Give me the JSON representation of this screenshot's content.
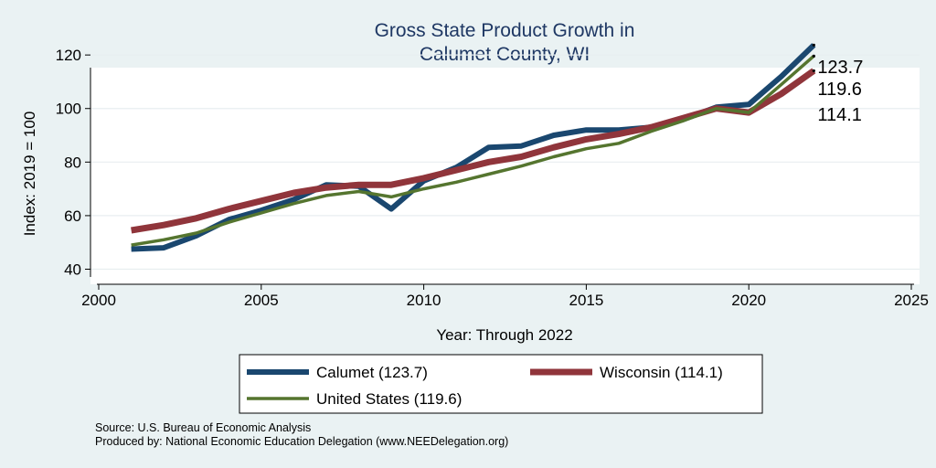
{
  "chart_data": {
    "type": "line",
    "title_lines": [
      "Gross State Product Growth in",
      "Calumet County, WI"
    ],
    "xlabel": "Year: Through 2022",
    "ylabel": "Index: 2019 = 100",
    "xlim": [
      2000,
      2025
    ],
    "ylim": [
      40,
      125
    ],
    "xticks": [
      2000,
      2005,
      2010,
      2015,
      2020,
      2025
    ],
    "yticks": [
      40,
      60,
      80,
      100,
      120
    ],
    "grid": true,
    "legend_position": "bottom",
    "x": [
      2001,
      2002,
      2003,
      2004,
      2005,
      2006,
      2007,
      2008,
      2009,
      2010,
      2011,
      2012,
      2013,
      2014,
      2015,
      2016,
      2017,
      2018,
      2019,
      2020,
      2021,
      2022
    ],
    "series": [
      {
        "name": "Calumet",
        "legend_label": "Calumet  (123.7)",
        "color": "#1a476f",
        "width": 6,
        "end_label": "123.7",
        "values": [
          47.5,
          48,
          52.5,
          58.5,
          62,
          66,
          71.5,
          71,
          62.5,
          73,
          78,
          85.5,
          86,
          90,
          92,
          92,
          93,
          96,
          100.5,
          101.5,
          112,
          123.7
        ]
      },
      {
        "name": "Wisconsin",
        "legend_label": "Wisconsin (114.1)",
        "color": "#90353b",
        "width": 7,
        "end_label": "114.1",
        "values": [
          54.5,
          56.5,
          59,
          62.5,
          65.5,
          68.5,
          70.5,
          71.5,
          71.5,
          74,
          77,
          80,
          82,
          85.5,
          88.5,
          90.5,
          93,
          96.5,
          100,
          98.5,
          105.5,
          114.1
        ]
      },
      {
        "name": "United States",
        "legend_label": "United States (119.6)",
        "color": "#55752f",
        "width": 3.5,
        "end_label": "119.6",
        "values": [
          49,
          51,
          53.5,
          57.5,
          61,
          64.5,
          67.5,
          69,
          67,
          70,
          72.5,
          75.5,
          78.5,
          82,
          85,
          87,
          91.5,
          95.5,
          100,
          98.5,
          109,
          119.6
        ]
      }
    ]
  },
  "notes": {
    "source": "Source: U.S. Bureau of Economic Analysis",
    "produced_by": "Produced by: National Economic Education Delegation (www.NEEDelegation.org)"
  }
}
